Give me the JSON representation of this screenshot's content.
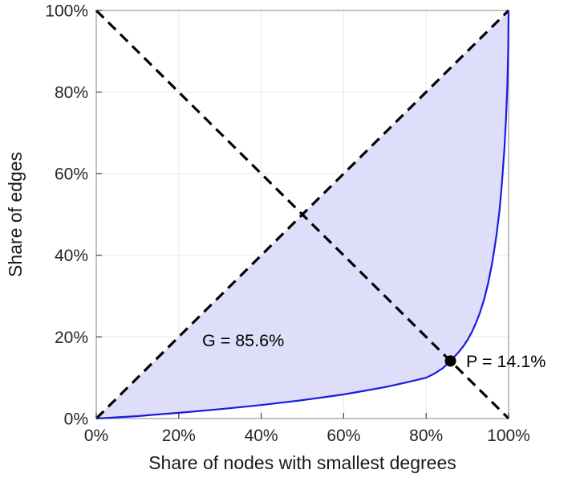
{
  "figure": {
    "background": "#ffffff"
  },
  "chart_data": {
    "type": "line",
    "title": "",
    "xlabel": "Share of nodes with smallest degrees",
    "ylabel": "Share of edges",
    "xlim": [
      0,
      100
    ],
    "ylim": [
      0,
      100
    ],
    "xticks": [
      0,
      20,
      40,
      60,
      80,
      100
    ],
    "yticks": [
      0,
      20,
      40,
      60,
      80,
      100
    ],
    "tick_suffix": "%",
    "grid": true,
    "legend": "none",
    "colors": {
      "curve": "#1a1ae0",
      "fill": "#dedefa",
      "dashed": "#000000",
      "grid": "#e7e7e7",
      "frame": "#9a9a9a",
      "tick": "#404040",
      "text": "#262626"
    },
    "series": [
      {
        "name": "equality-diagonal",
        "style": "dashed",
        "points": [
          [
            0,
            0
          ],
          [
            100,
            100
          ]
        ]
      },
      {
        "name": "anti-diagonal",
        "style": "dashed",
        "points": [
          [
            0,
            100
          ],
          [
            100,
            0
          ]
        ]
      },
      {
        "name": "lorenz-curve",
        "style": "solid",
        "points": [
          [
            0,
            0
          ],
          [
            5,
            0.3
          ],
          [
            10,
            0.6
          ],
          [
            15,
            1.0
          ],
          [
            20,
            1.4
          ],
          [
            25,
            1.85
          ],
          [
            30,
            2.3
          ],
          [
            35,
            2.8
          ],
          [
            40,
            3.3
          ],
          [
            45,
            3.9
          ],
          [
            50,
            4.5
          ],
          [
            55,
            5.2
          ],
          [
            60,
            5.9
          ],
          [
            65,
            6.8
          ],
          [
            70,
            7.7
          ],
          [
            75,
            8.8
          ],
          [
            80,
            10.0
          ],
          [
            82,
            11.0
          ],
          [
            84,
            12.3
          ],
          [
            85.9,
            14.1
          ],
          [
            87,
            15.3
          ],
          [
            88,
            16.4
          ],
          [
            89,
            17.7
          ],
          [
            90,
            19.2
          ],
          [
            91,
            21.0
          ],
          [
            92,
            23.2
          ],
          [
            93,
            25.8
          ],
          [
            94,
            29.0
          ],
          [
            95,
            33.0
          ],
          [
            96,
            38.0
          ],
          [
            97,
            44.5
          ],
          [
            97.8,
            51.0
          ],
          [
            98.4,
            58.0
          ],
          [
            99,
            66.5
          ],
          [
            99.4,
            74.0
          ],
          [
            99.7,
            82.0
          ],
          [
            99.9,
            90.0
          ],
          [
            100,
            100
          ]
        ]
      }
    ],
    "fill_between": {
      "upper": "equality-diagonal",
      "lower": "lorenz-curve"
    },
    "point": {
      "label": "P",
      "x": 85.9,
      "y": 14.1,
      "color": "#000000"
    },
    "annotations": [
      {
        "id": "gini",
        "text": "G = 85.6%"
      },
      {
        "id": "p",
        "text": "P = 14.1%"
      }
    ]
  }
}
